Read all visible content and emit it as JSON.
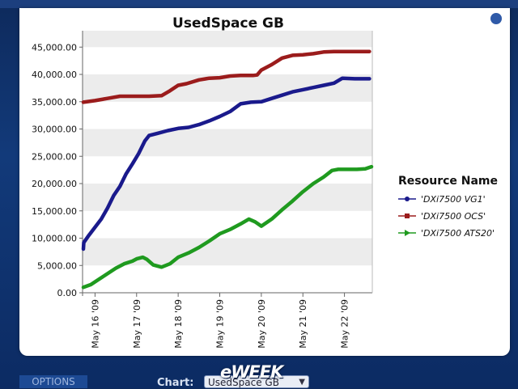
{
  "chart_data": {
    "type": "line",
    "title": "UsedSpace GB",
    "xlabel": "",
    "ylabel": "",
    "ylim": [
      0,
      48000
    ],
    "yticks": [
      "0.00",
      "5,000.00",
      "10,000.00",
      "15,000.00",
      "20,000.00",
      "25,000.00",
      "30,000.00",
      "35,000.00",
      "40,000.00",
      "45,000.00"
    ],
    "ytick_values": [
      0,
      5000,
      10000,
      15000,
      20000,
      25000,
      30000,
      35000,
      40000,
      45000
    ],
    "xlim": [
      15.7,
      22.67
    ],
    "xticks": [
      "May 16 '09",
      "May 17 '09",
      "May 18 '09",
      "May 19 '09",
      "May 20 '09",
      "May 21 '09",
      "May 22 '09"
    ],
    "xtick_values": [
      16,
      17,
      18,
      19,
      20,
      21,
      22
    ],
    "grid": "alternating horizontal bands",
    "legend_title": "Resource Name",
    "legend_position": "right",
    "series": [
      {
        "name": "'DXi7500 VG1'",
        "color": "#1a1a8c",
        "marker": "circle",
        "points": [
          [
            15.72,
            8000
          ],
          [
            15.73,
            9200
          ],
          [
            15.85,
            10500
          ],
          [
            16.0,
            12000
          ],
          [
            16.15,
            13500
          ],
          [
            16.3,
            15500
          ],
          [
            16.45,
            17800
          ],
          [
            16.6,
            19500
          ],
          [
            16.75,
            21800
          ],
          [
            16.9,
            23600
          ],
          [
            17.05,
            25500
          ],
          [
            17.2,
            27800
          ],
          [
            17.3,
            28800
          ],
          [
            17.5,
            29200
          ],
          [
            17.75,
            29700
          ],
          [
            18.0,
            30100
          ],
          [
            18.25,
            30300
          ],
          [
            18.5,
            30800
          ],
          [
            18.75,
            31500
          ],
          [
            19.0,
            32300
          ],
          [
            19.25,
            33200
          ],
          [
            19.5,
            34600
          ],
          [
            19.75,
            34900
          ],
          [
            20.0,
            35000
          ],
          [
            20.25,
            35600
          ],
          [
            20.5,
            36200
          ],
          [
            20.75,
            36800
          ],
          [
            21.0,
            37200
          ],
          [
            21.25,
            37600
          ],
          [
            21.5,
            38000
          ],
          [
            21.75,
            38400
          ],
          [
            21.95,
            39300
          ],
          [
            22.25,
            39200
          ],
          [
            22.6,
            39200
          ]
        ]
      },
      {
        "name": "'DXi7500 OCS'",
        "color": "#9b1c1c",
        "marker": "square",
        "points": [
          [
            15.72,
            34900
          ],
          [
            16.0,
            35200
          ],
          [
            16.3,
            35600
          ],
          [
            16.6,
            36000
          ],
          [
            17.0,
            36000
          ],
          [
            17.3,
            36000
          ],
          [
            17.6,
            36100
          ],
          [
            17.8,
            37000
          ],
          [
            18.0,
            38000
          ],
          [
            18.2,
            38300
          ],
          [
            18.5,
            39000
          ],
          [
            18.75,
            39300
          ],
          [
            19.0,
            39400
          ],
          [
            19.25,
            39700
          ],
          [
            19.5,
            39800
          ],
          [
            19.8,
            39800
          ],
          [
            19.9,
            39900
          ],
          [
            20.0,
            40800
          ],
          [
            20.25,
            41800
          ],
          [
            20.5,
            43000
          ],
          [
            20.75,
            43500
          ],
          [
            21.0,
            43600
          ],
          [
            21.25,
            43800
          ],
          [
            21.5,
            44100
          ],
          [
            21.75,
            44200
          ],
          [
            22.0,
            44200
          ],
          [
            22.3,
            44200
          ],
          [
            22.6,
            44200
          ]
        ]
      },
      {
        "name": "'DXi7500 ATS20'",
        "color": "#1f9a1f",
        "marker": "triangle",
        "points": [
          [
            15.72,
            1000
          ],
          [
            15.9,
            1500
          ],
          [
            16.1,
            2500
          ],
          [
            16.3,
            3500
          ],
          [
            16.5,
            4500
          ],
          [
            16.7,
            5300
          ],
          [
            16.9,
            5800
          ],
          [
            17.0,
            6200
          ],
          [
            17.15,
            6500
          ],
          [
            17.25,
            6100
          ],
          [
            17.4,
            5100
          ],
          [
            17.6,
            4700
          ],
          [
            17.8,
            5300
          ],
          [
            18.0,
            6500
          ],
          [
            18.25,
            7300
          ],
          [
            18.5,
            8300
          ],
          [
            18.75,
            9500
          ],
          [
            19.0,
            10800
          ],
          [
            19.25,
            11600
          ],
          [
            19.5,
            12600
          ],
          [
            19.7,
            13500
          ],
          [
            19.85,
            13000
          ],
          [
            20.0,
            12200
          ],
          [
            20.25,
            13500
          ],
          [
            20.5,
            15200
          ],
          [
            20.75,
            16800
          ],
          [
            21.0,
            18500
          ],
          [
            21.25,
            20000
          ],
          [
            21.5,
            21200
          ],
          [
            21.7,
            22400
          ],
          [
            21.85,
            22600
          ],
          [
            22.0,
            22600
          ],
          [
            22.3,
            22600
          ],
          [
            22.5,
            22700
          ],
          [
            22.65,
            23100
          ]
        ]
      }
    ]
  },
  "footer": {
    "options_label": "OPTIONS",
    "chart_label": "Chart:",
    "chart_select_value": "UsedSpace GB",
    "logo_text": "eWEEK"
  },
  "colors": {
    "background": "#123a7a",
    "band": "#ececec"
  },
  "icons": {
    "select_chevron": "chevron-down-icon"
  }
}
